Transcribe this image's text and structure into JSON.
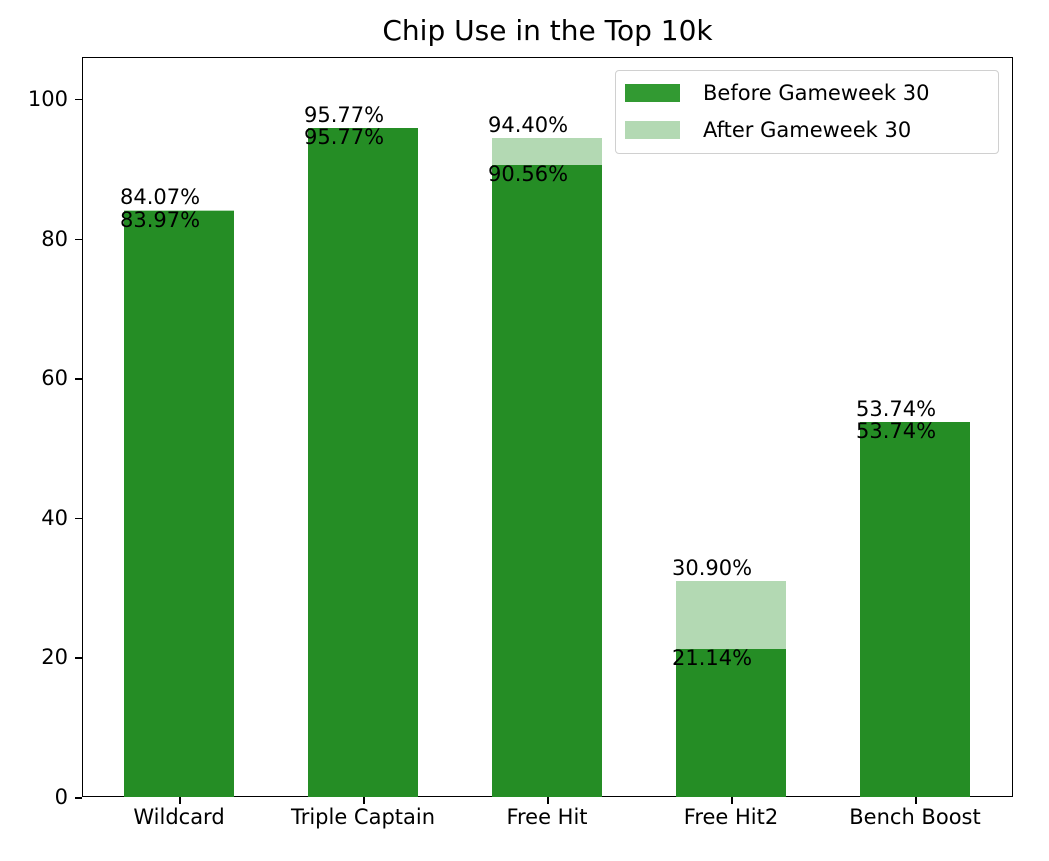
{
  "chart_data": {
    "type": "bar",
    "stacked": true,
    "title": "Chip Use in the Top 10k",
    "xlabel": "",
    "ylabel": "",
    "ylim": [
      0,
      106
    ],
    "yticks": [
      0,
      20,
      40,
      60,
      80,
      100
    ],
    "categories": [
      "Wildcard",
      "Triple Captain",
      "Free Hit",
      "Free Hit2",
      "Bench Boost"
    ],
    "series": [
      {
        "name": "Before Gameweek 30",
        "color": "#258d25",
        "values": [
          83.97,
          95.77,
          90.56,
          21.14,
          53.74
        ]
      },
      {
        "name": "After Gameweek 30",
        "color": "#b3d9b3",
        "values": [
          84.07,
          95.77,
          94.4,
          30.9,
          53.74
        ],
        "note": "cumulative total (top of stacked bar)"
      }
    ],
    "data_labels": {
      "before": [
        "83.97%",
        "95.77%",
        "90.56%",
        "21.14%",
        "53.74%"
      ],
      "after": [
        "84.07%",
        "95.77%",
        "94.40%",
        "30.90%",
        "53.74%"
      ]
    },
    "legend": {
      "position": "upper right",
      "entries": [
        "Before Gameweek 30",
        "After Gameweek 30"
      ]
    },
    "grid": false
  }
}
